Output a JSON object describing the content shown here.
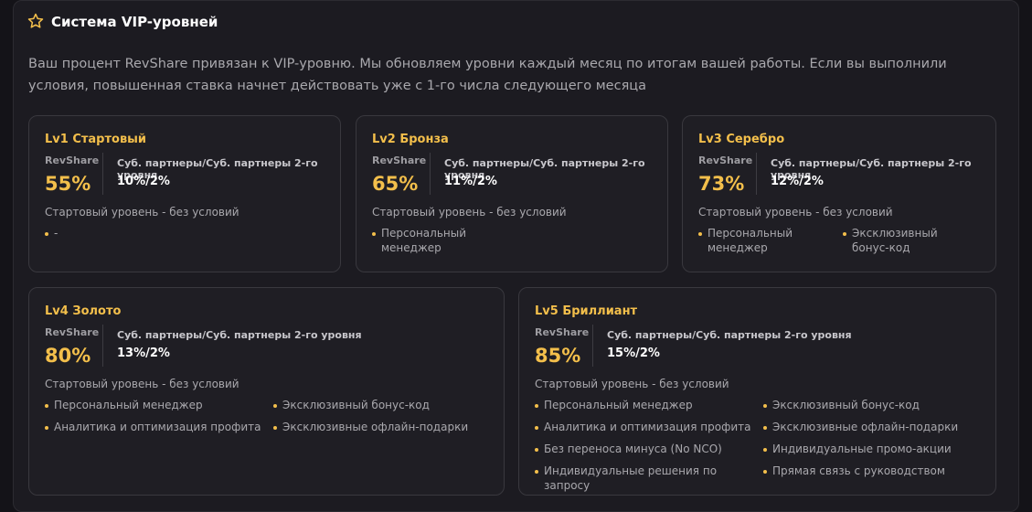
{
  "header": {
    "title": "Система VIP-уровней"
  },
  "description": "Ваш процент RevShare привязан к VIP-уровню. Мы обновляем уровни каждый месяц по итогам вашей работы. Если вы выполнили условия, повышенная ставка начнет действовать уже с 1-го числа следующего месяца",
  "levels": [
    {
      "name": "Lv1 Стартовый",
      "revshare_label": "RevShare",
      "revshare": "55%",
      "sub_label": "Суб. партнеры/Суб. партнеры 2-го уровня",
      "sub_value": "10%/2%",
      "condition": "Стартовый уровень - без условий",
      "perks": [
        "-"
      ]
    },
    {
      "name": "Lv2 Бронза",
      "revshare_label": "RevShare",
      "revshare": "65%",
      "sub_label": "Суб. партнеры/Суб. партнеры 2-го уровня",
      "sub_value": "11%/2%",
      "condition": "Стартовый уровень - без условий",
      "perks": [
        "Персональный менеджер"
      ]
    },
    {
      "name": "Lv3 Серебро",
      "revshare_label": "RevShare",
      "revshare": "73%",
      "sub_label": "Суб. партнеры/Суб. партнеры 2-го уровня",
      "sub_value": "12%/2%",
      "condition": "Стартовый уровень - без условий",
      "perks": [
        "Персональный менеджер",
        "Эксклюзивный бонус-код"
      ]
    },
    {
      "name": "Lv4 Золото",
      "revshare_label": "RevShare",
      "revshare": "80%",
      "sub_label": "Суб. партнеры/Суб. партнеры 2-го уровня",
      "sub_value": "13%/2%",
      "condition": "Стартовый уровень - без условий",
      "perks": [
        "Персональный менеджер",
        "Эксклюзивный бонус-код",
        "Аналитика и оптимизация профита",
        "Эксклюзивные офлайн-подарки"
      ]
    },
    {
      "name": "Lv5 Бриллиант",
      "revshare_label": "RevShare",
      "revshare": "85%",
      "sub_label": "Суб. партнеры/Суб. партнеры 2-го уровня",
      "sub_value": "15%/2%",
      "condition": "Стартовый уровень - без условий",
      "perks": [
        "Персональный менеджер",
        "Эксклюзивный бонус-код",
        "Аналитика и оптимизация профита",
        "Эксклюзивные офлайн-подарки",
        "Без переноса минуса (No NCO)",
        "Индивидуальные промо-акции",
        "Индивидуальные решения по запросу",
        "Прямая связь с руководством"
      ]
    }
  ]
}
